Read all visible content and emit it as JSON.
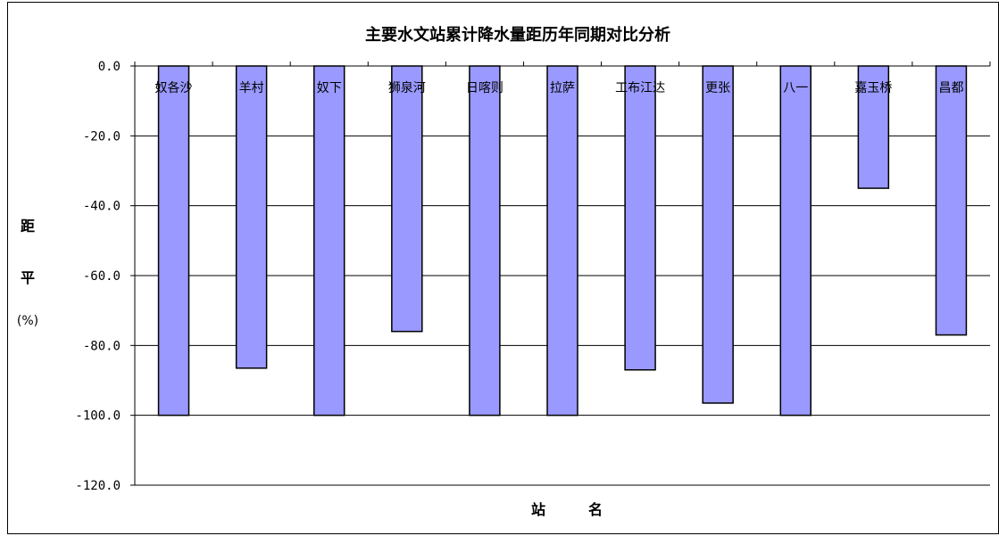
{
  "chart_data": {
    "type": "bar",
    "title": "主要水文站累计降水量距历年同期对比分析",
    "xlabel": "站　　　名",
    "ylabel": [
      "距",
      "平",
      "(%)"
    ],
    "ylim": [
      -120,
      0
    ],
    "ytick_step": 20,
    "ytick_labels": [
      "0.0",
      "-20.0",
      "-40.0",
      "-60.0",
      "-80.0",
      "-100.0",
      "-120.0"
    ],
    "grid": true,
    "legend": "none",
    "bar_color": "#9999ff",
    "bar_edge_color": "#000000",
    "categories": [
      "奴各沙",
      "羊村",
      "奴下",
      "狮泉河",
      "日喀则",
      "拉萨",
      "工布江达",
      "更张",
      "八一",
      "嘉玉桥",
      "昌都"
    ],
    "values": [
      -100,
      -86.5,
      -100,
      -76,
      -100,
      -100,
      -87,
      -96.5,
      -100,
      -35,
      -77
    ]
  }
}
